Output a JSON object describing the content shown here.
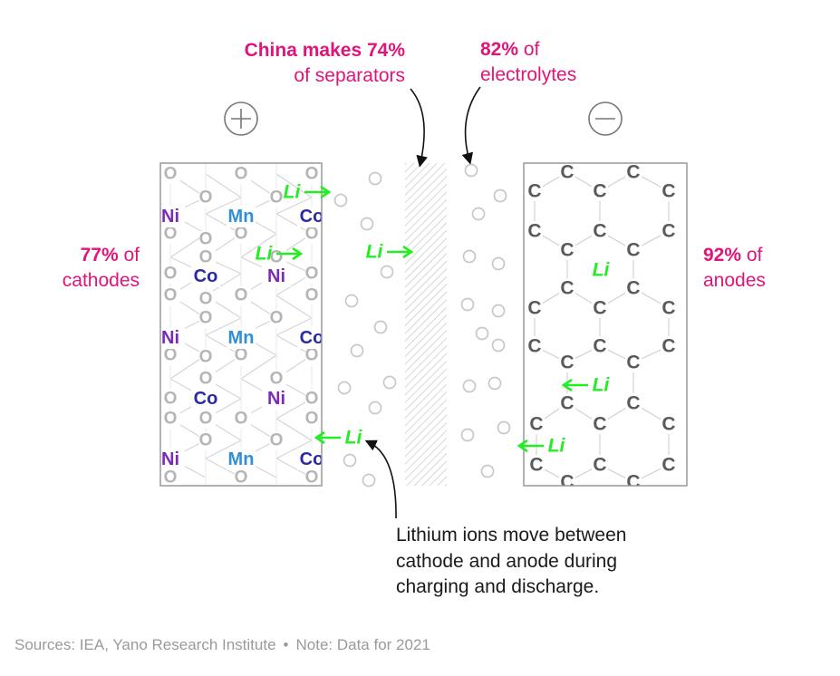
{
  "annotations": {
    "separators": {
      "bold": "China makes 74%",
      "rest": "of separators"
    },
    "electrolytes": {
      "percent": "82%",
      "of": " of",
      "rest": "electrolytes"
    },
    "cathodes": {
      "percent": "77%",
      "of": " of",
      "rest": "cathodes"
    },
    "anodes": {
      "percent": "92%",
      "of": " of",
      "rest": "anodes"
    }
  },
  "terminals": {
    "positive": "+",
    "negative": "−"
  },
  "elements": {
    "nickel": "Ni",
    "manganese": "Mn",
    "cobalt": "Co",
    "oxygen": "O",
    "carbon": "C",
    "lithium": "Li"
  },
  "note": "Lithium ions move between cathode and anode during charging and discharge.",
  "footer": {
    "sources": "Sources: IEA, Yano Research Institute",
    "separator": "•",
    "note": "Note: Data for 2021"
  },
  "colors": {
    "highlight": "#e0147a",
    "lithium": "#22ee22",
    "nickel": "#7b2ab3",
    "manganese": "#2f8fd8",
    "cobalt": "#2a2aa8",
    "oxygen": "#b5b5b5",
    "carbon": "#5a5a5a",
    "frame": "#999999"
  }
}
